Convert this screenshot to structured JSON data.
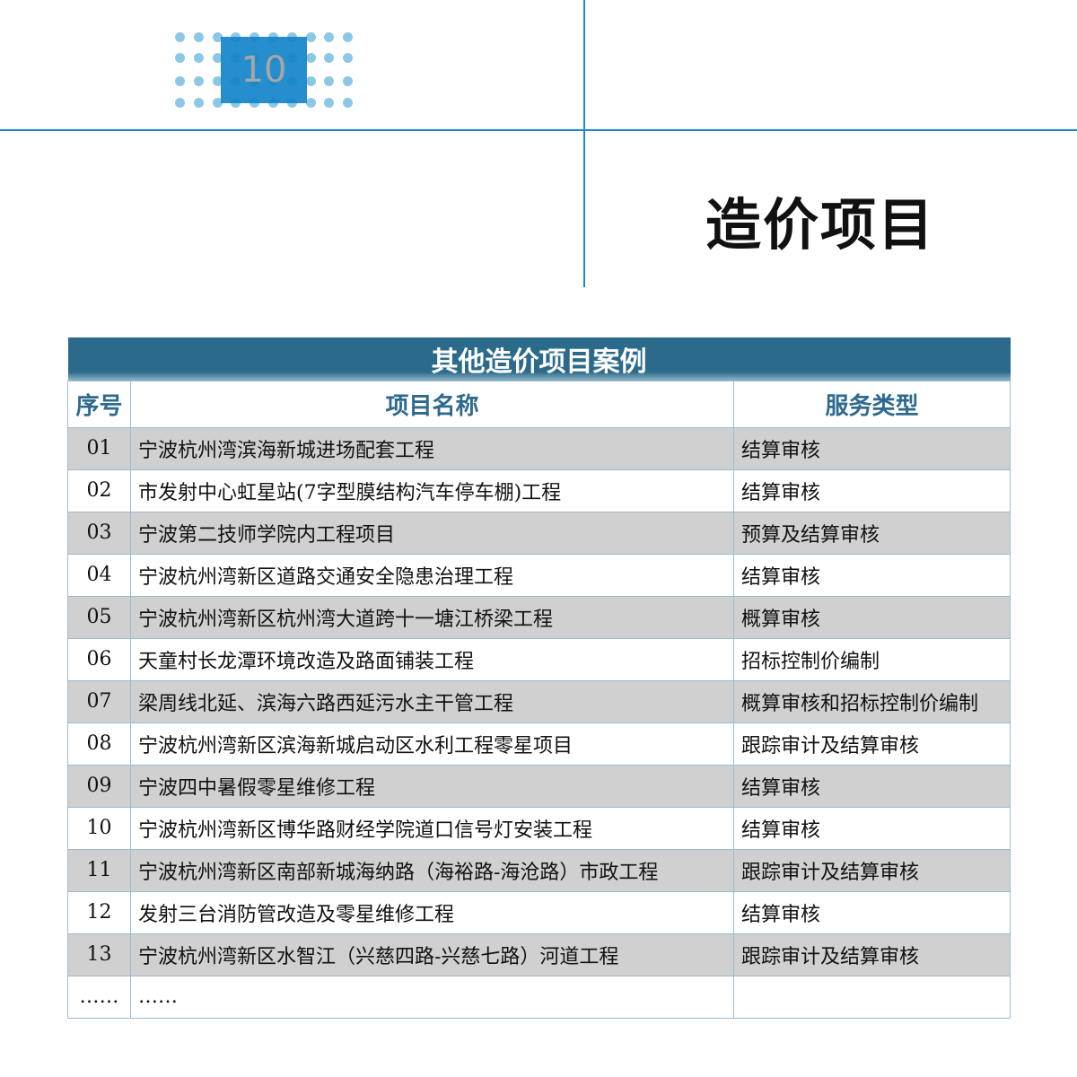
{
  "page": {
    "number": "10",
    "title": "造价项目"
  },
  "table": {
    "caption": "其他造价项目案例",
    "headers": [
      "序号",
      "项目名称",
      "服务类型"
    ],
    "rows": [
      [
        "01",
        "宁波杭州湾滨海新城进场配套工程",
        "结算审核"
      ],
      [
        "02",
        "市发射中心虹星站(7字型膜结构汽车停车棚)工程",
        "结算审核"
      ],
      [
        "03",
        "宁波第二技师学院内工程项目",
        "预算及结算审核"
      ],
      [
        "04",
        "宁波杭州湾新区道路交通安全隐患治理工程",
        "结算审核"
      ],
      [
        "05",
        "宁波杭州湾新区杭州湾大道跨十一塘江桥梁工程",
        "概算审核"
      ],
      [
        "06",
        "天童村长龙潭环境改造及路面铺装工程",
        "招标控制价编制"
      ],
      [
        "07",
        "梁周线北延、滨海六路西延污水主干管工程",
        "概算审核和招标控制价编制"
      ],
      [
        "08",
        "宁波杭州湾新区滨海新城启动区水利工程零星项目",
        "跟踪审计及结算审核"
      ],
      [
        "09",
        "宁波四中暑假零星维修工程",
        "结算审核"
      ],
      [
        "10",
        "宁波杭州湾新区博华路财经学院道口信号灯安装工程",
        "结算审核"
      ],
      [
        "11",
        "宁波杭州湾新区南部新城海纳路（海裕路-海沧路）市政工程",
        "跟踪审计及结算审核"
      ],
      [
        "12",
        "发射三台消防管改造及零星维修工程",
        "结算审核"
      ],
      [
        "13",
        "宁波杭州湾新区水智江（兴慈四路-兴慈七路）河道工程",
        "跟踪审计及结算审核"
      ],
      [
        "……",
        "……",
        ""
      ]
    ]
  },
  "colors": {
    "accent": "#1f86c8",
    "header": "#2b6a8a",
    "stripe": "#d0d0d0"
  }
}
